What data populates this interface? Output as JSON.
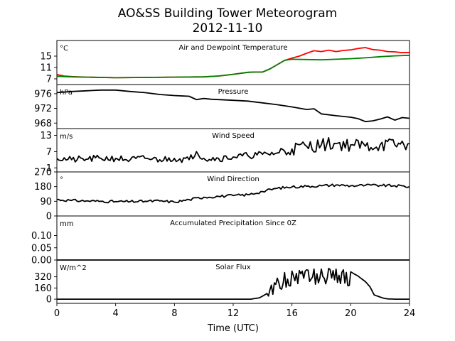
{
  "figure": {
    "title": "AO&SS Building Tower Meteorogram",
    "subtitle": "2012-11-10",
    "xlabel": "Time (UTC)"
  },
  "chart_data": [
    {
      "type": "line",
      "title": "Air and Dewpoint Temperature",
      "unit_label": "°C",
      "xlim": [
        0,
        24
      ],
      "ylim": [
        5.0,
        20.5
      ],
      "yticks": [
        7,
        11,
        15
      ],
      "series": [
        {
          "color": "#ff0000",
          "x": [
            0,
            0.5,
            1,
            2,
            4,
            6,
            8,
            10,
            11,
            12,
            13,
            13.5,
            14,
            14.5,
            15,
            15.5,
            16,
            16.5,
            17,
            17.5,
            18,
            18.5,
            19,
            19.5,
            20,
            20.5,
            21,
            21.5,
            22,
            22.5,
            23,
            23.5,
            24
          ],
          "y": [
            8.5,
            8.0,
            7.8,
            7.6,
            7.4,
            7.5,
            7.6,
            7.7,
            8.0,
            8.6,
            9.3,
            9.4,
            9.4,
            10.5,
            12.0,
            13.5,
            14.3,
            15.0,
            16.0,
            16.9,
            16.6,
            17.1,
            16.6,
            17.0,
            17.2,
            17.7,
            18.0,
            17.3,
            17.1,
            16.6,
            16.5,
            16.2,
            16.3
          ]
        },
        {
          "color": "#008000",
          "x": [
            0,
            0.5,
            1,
            2,
            4,
            6,
            8,
            10,
            11,
            12,
            13,
            13.5,
            14,
            14.5,
            15,
            15.5,
            16,
            17,
            18,
            19,
            20,
            21,
            22,
            23,
            24
          ],
          "y": [
            7.9,
            7.8,
            7.7,
            7.6,
            7.4,
            7.5,
            7.6,
            7.7,
            8.0,
            8.6,
            9.3,
            9.4,
            9.4,
            10.5,
            12.0,
            13.5,
            13.9,
            13.8,
            13.7,
            13.9,
            14.1,
            14.4,
            14.8,
            15.1,
            15.3
          ]
        }
      ]
    },
    {
      "type": "line",
      "title": "Pressure",
      "unit_label": "hPa",
      "xlim": [
        0,
        24
      ],
      "ylim": [
        966.5,
        978.5
      ],
      "yticks": [
        968,
        972,
        976
      ],
      "series": [
        {
          "color": "#000000",
          "x": [
            0,
            1,
            2,
            3,
            4,
            5,
            6,
            7,
            8,
            9,
            9.5,
            10,
            10.5,
            11,
            12,
            13,
            14,
            15,
            16,
            17,
            17.5,
            18,
            19,
            20,
            20.5,
            21,
            21.5,
            22,
            22.5,
            23,
            23.5,
            24
          ],
          "y": [
            976.3,
            976.6,
            976.8,
            977.0,
            977.0,
            976.6,
            976.3,
            975.8,
            975.5,
            975.3,
            974.4,
            974.7,
            974.5,
            974.4,
            974.2,
            974.0,
            973.5,
            973.0,
            972.4,
            971.7,
            971.9,
            970.5,
            970.0,
            969.6,
            969.2,
            968.4,
            968.6,
            969.1,
            969.7,
            968.8,
            969.5,
            969.3
          ]
        }
      ]
    },
    {
      "type": "line",
      "title": "Wind Speed",
      "unit_label": "m/s",
      "xlim": [
        0,
        24
      ],
      "ylim": [
        -0.5,
        15.5
      ],
      "yticks": [
        1,
        7,
        13
      ],
      "series": [
        {
          "color": "#000000",
          "x": [
            0,
            1,
            2,
            3,
            4,
            5,
            6,
            7,
            8,
            9,
            9.5,
            10,
            11,
            12,
            13,
            14,
            15,
            16,
            17,
            18,
            19,
            20,
            21,
            22,
            23,
            24
          ],
          "y": [
            4.5,
            4.0,
            4.2,
            4.5,
            4.5,
            4.0,
            4.5,
            4.0,
            4.5,
            4.0,
            7.0,
            4.5,
            4.5,
            5.0,
            5.5,
            6.0,
            6.5,
            8.0,
            9.0,
            9.5,
            10.0,
            9.5,
            9.0,
            9.5,
            9.5,
            10.0
          ]
        }
      ]
    },
    {
      "type": "line",
      "title": "Wind Direction",
      "unit_label": "°",
      "xlim": [
        0,
        24
      ],
      "ylim": [
        0,
        270
      ],
      "yticks": [
        0,
        90,
        180,
        270
      ],
      "series": [
        {
          "color": "#000000",
          "x": [
            0,
            1,
            2,
            3,
            4,
            5,
            6,
            7,
            8,
            9,
            10,
            11,
            12,
            13,
            14,
            15,
            16,
            17,
            18,
            19,
            20,
            21,
            22,
            23,
            24
          ],
          "y": [
            100,
            95,
            92,
            90,
            88,
            88,
            90,
            92,
            85,
            100,
            115,
            120,
            125,
            130,
            150,
            170,
            178,
            182,
            185,
            190,
            185,
            188,
            187,
            185,
            180
          ]
        }
      ]
    },
    {
      "type": "line",
      "title": "Accumulated Precipitation Since 0Z",
      "unit_label": "mm",
      "xlim": [
        0,
        24
      ],
      "ylim": [
        0,
        0.18
      ],
      "yticks": [
        0.0,
        0.05,
        0.1
      ],
      "yticklabels": [
        "0.00",
        "0.05",
        "0.10"
      ],
      "series": [
        {
          "color": "#000000",
          "x": [
            0,
            24
          ],
          "y": [
            0,
            0
          ]
        }
      ]
    },
    {
      "type": "line",
      "title": "Solar Flux",
      "unit_label": "W/m^2",
      "xlim": [
        0,
        24
      ],
      "ylim": [
        -60,
        560
      ],
      "yticks": [
        0,
        160,
        320
      ],
      "series": [
        {
          "color": "#000000",
          "x": [
            0,
            13.2,
            13.8,
            14.3,
            14.6,
            15.0,
            15.5,
            16.0,
            16.5,
            17.0,
            17.5,
            18.0,
            18.5,
            19.0,
            19.5,
            20.0,
            20.5,
            21.0,
            21.3,
            21.6,
            22.0,
            22.3,
            22.6,
            23.0,
            24
          ],
          "y": [
            0,
            0,
            20,
            80,
            200,
            300,
            380,
            400,
            410,
            420,
            430,
            430,
            440,
            430,
            420,
            390,
            330,
            250,
            180,
            60,
            30,
            10,
            3,
            0,
            0
          ]
        }
      ]
    }
  ]
}
